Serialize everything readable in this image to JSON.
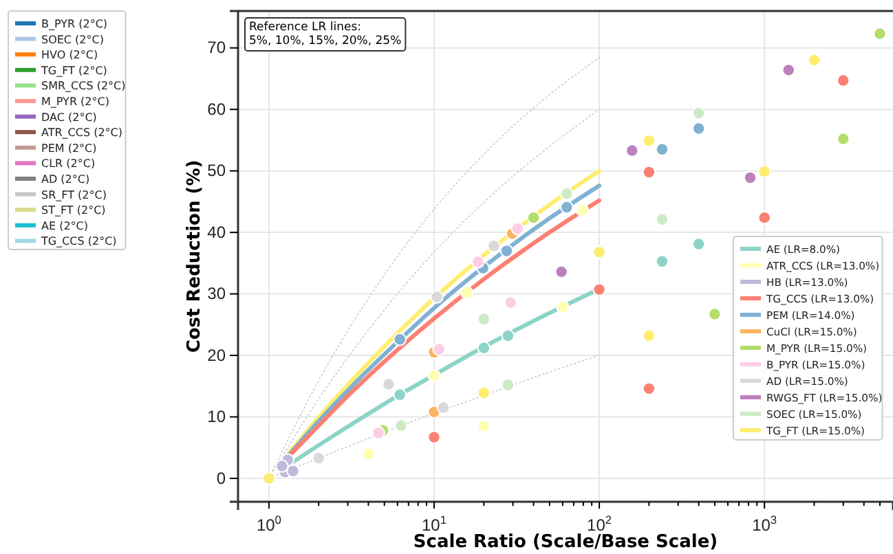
{
  "chart_data": {
    "type": "scatter",
    "xlabel": "Scale Ratio (Scale/Base Scale)",
    "ylabel": "Cost Reduction (%)",
    "annotations": [
      "Reference LR lines:\n5%, 10%, 15%, 20%, 25%"
    ],
    "log": "x",
    "grid": true,
    "legend": "top left",
    "marker": "circle",
    "xlim": [
      0.65,
      6000
    ],
    "ylim": [
      -3.8,
      76
    ],
    "xticks": [
      {
        "value": 1,
        "label": "10$^{0}$"
      },
      {
        "value": 2,
        "label": null
      },
      {
        "value": 3,
        "label": null
      },
      {
        "value": 4,
        "label": null
      },
      {
        "value": 5,
        "label": null
      },
      {
        "value": 6,
        "label": null
      },
      {
        "value": 7,
        "label": null
      },
      {
        "value": 8,
        "label": null
      },
      {
        "value": 9,
        "label": null
      },
      {
        "value": 10,
        "label": "10$^{1}$"
      },
      {
        "value": 20,
        "label": null
      },
      {
        "value": 30,
        "label": null
      },
      {
        "value": 40,
        "label": null
      },
      {
        "value": 50,
        "label": null
      },
      {
        "value": 60,
        "label": null
      },
      {
        "value": 70,
        "label": null
      },
      {
        "value": 80,
        "label": null
      },
      {
        "value": 90,
        "label": null
      },
      {
        "value": 100,
        "label": "10$^{2}$"
      },
      {
        "value": 200,
        "label": null
      },
      {
        "value": 300,
        "label": null
      },
      {
        "value": 400,
        "label": null
      },
      {
        "value": 500,
        "label": null
      },
      {
        "value": 600,
        "label": null
      },
      {
        "value": 700,
        "label": null
      },
      {
        "value": 800,
        "label": null
      },
      {
        "value": 900,
        "label": null
      },
      {
        "value": 1000,
        "label": "10$^{3}$"
      },
      {
        "value": 2000,
        "label": null
      },
      {
        "value": 3000,
        "label": null
      },
      {
        "value": 4000,
        "label": null
      },
      {
        "value": 5000,
        "label": null
      }
    ],
    "yticks": [
      0,
      10,
      20,
      30,
      40,
      50,
      60,
      70
    ],
    "series": [
      {
        "type": "line",
        "marker": "none",
        "line_style": "dotted",
        "color": "#cccccc",
        "x": [
          1,
          2,
          5,
          10,
          20,
          50,
          100
        ],
        "values": [
          0,
          3.3,
          7.5,
          10.6,
          13.5,
          17.3,
          20.0
        ]
      },
      {
        "type": "line",
        "marker": "none",
        "line_style": "dotted",
        "color": "#cccccc",
        "x": [
          1,
          2,
          5,
          10,
          20,
          50,
          100
        ],
        "values": [
          0,
          12.9,
          27.4,
          36.8,
          44.9,
          54.0,
          60.0
        ]
      },
      {
        "type": "line",
        "marker": "none",
        "line_style": "dotted",
        "color": "#cccccc",
        "x": [
          1,
          2,
          5,
          10,
          20,
          50,
          100
        ],
        "values": [
          0,
          15.9,
          33.1,
          43.8,
          52.7,
          62.4,
          68.4
        ]
      },
      {
        "type": "line",
        "marker": "none",
        "color": "#ffed6f",
        "x": [
          1.3,
          2,
          3,
          6,
          10,
          20,
          50,
          100
        ],
        "values": [
          3.9,
          9.9,
          15.2,
          23.6,
          29.3,
          36.3,
          44.5,
          50.0
        ]
      },
      {
        "type": "line",
        "marker": "none",
        "color": "#80b1d3",
        "x": [
          1.3,
          2,
          3,
          6,
          10,
          20,
          50,
          100
        ],
        "values": [
          3.6,
          9.3,
          14.3,
          22.2,
          27.7,
          34.4,
          42.3,
          47.6
        ]
      },
      {
        "type": "line",
        "marker": "none",
        "color": "#fb8072",
        "x": [
          1.3,
          2,
          3,
          6,
          10,
          20,
          50,
          100
        ],
        "values": [
          3.4,
          8.6,
          13.4,
          20.9,
          26.0,
          32.4,
          40.0,
          45.2
        ]
      },
      {
        "type": "line",
        "marker": "none",
        "color": "#8dd3c7",
        "x": [
          1.3,
          2,
          3,
          6,
          10,
          20,
          50,
          100
        ],
        "values": [
          2.1,
          5.4,
          8.4,
          13.4,
          16.8,
          21.4,
          26.9,
          30.8
        ]
      },
      {
        "name": "AE (LR=8.0%)",
        "color": "#8dd3c7",
        "x": [
          6.2,
          20,
          28,
          400,
          240
        ],
        "values": [
          13.6,
          21.2,
          23.2,
          38.1,
          35.3
        ]
      },
      {
        "name": "ATR_CCS (LR=13.0%)",
        "color": "#ffffb3",
        "x": [
          4,
          10,
          15.8,
          60,
          79,
          20
        ],
        "values": [
          4.0,
          16.7,
          30.2,
          27.9,
          43.6,
          8.5
        ]
      },
      {
        "name": "HB (LR=13.0%)",
        "color": "#bebada",
        "x": [
          1.25,
          1.4,
          1.3,
          1.2
        ],
        "values": [
          1.0,
          1.2,
          3.0,
          2.0
        ]
      },
      {
        "name": "TG_CCS (LR=13.0%)",
        "color": "#fb8072",
        "x": [
          10,
          100,
          200,
          1000,
          3000,
          200
        ],
        "values": [
          6.7,
          30.7,
          49.8,
          42.4,
          64.7,
          14.6
        ]
      },
      {
        "name": "PEM (LR=14.0%)",
        "color": "#80b1d3",
        "x": [
          6.2,
          19.8,
          27.5,
          63.5,
          400,
          240
        ],
        "values": [
          22.6,
          34.2,
          37.0,
          44.1,
          56.9,
          53.5
        ]
      },
      {
        "name": "CuCl (LR=15.0%)",
        "color": "#fdb462",
        "x": [
          10,
          10,
          29.7
        ],
        "values": [
          10.8,
          20.5,
          39.8
        ]
      },
      {
        "name": "M_PYR (LR=15.0%)",
        "color": "#b3de69",
        "x": [
          4.9,
          40,
          500,
          3000,
          5000
        ],
        "values": [
          7.8,
          42.4,
          26.7,
          55.2,
          72.3
        ]
      },
      {
        "name": "B_PYR (LR=15.0%)",
        "color": "#fccde5",
        "x": [
          4.6,
          10.7,
          18.4,
          32,
          29
        ],
        "values": [
          7.4,
          21.0,
          35.2,
          40.6,
          28.6
        ]
      },
      {
        "name": "AD (LR=15.0%)",
        "color": "#d9d9d9",
        "x": [
          2,
          5.3,
          11.4,
          10.4,
          23
        ],
        "values": [
          3.3,
          15.3,
          11.5,
          29.5,
          37.8
        ]
      },
      {
        "name": "RWGS_FT (LR=15.0%)",
        "color": "#bc80bd",
        "x": [
          59,
          158,
          1400,
          820
        ],
        "values": [
          33.6,
          53.3,
          66.4,
          48.9
        ]
      },
      {
        "name": "SOEC (LR=15.0%)",
        "color": "#ccebc5",
        "x": [
          6.3,
          63.5,
          20,
          28,
          400,
          240
        ],
        "values": [
          8.6,
          46.3,
          25.9,
          15.2,
          59.4,
          42.1
        ]
      },
      {
        "name": "TG_FT (LR=15.0%)",
        "color": "#ffed6f",
        "x": [
          1,
          100,
          200,
          200,
          20,
          1000,
          2000
        ],
        "values": [
          0,
          36.8,
          54.9,
          23.2,
          13.9,
          49.9,
          68.0
        ]
      },
      {
        "type": "line",
        "name": "B_PYR (2°C)",
        "color": "#1f77b4"
      },
      {
        "type": "line",
        "name": "SOEC (2°C)",
        "color": "#aec7e8"
      },
      {
        "type": "line",
        "name": "HVO (2°C)",
        "color": "#ff7f0e"
      },
      {
        "type": "line",
        "name": "TG_FT (2°C)",
        "color": "#2ca02c"
      },
      {
        "type": "line",
        "name": "SMR_CCS (2°C)",
        "color": "#98df8a"
      },
      {
        "type": "line",
        "name": "M_PYR (2°C)",
        "color": "#ff9896"
      },
      {
        "type": "line",
        "name": "DAC (2°C)",
        "color": "#9467bd"
      },
      {
        "type": "line",
        "name": "ATR_CCS (2°C)",
        "color": "#8c564b"
      },
      {
        "type": "line",
        "name": "PEM (2°C)",
        "color": "#c49c94"
      },
      {
        "type": "line",
        "name": "CLR (2°C)",
        "color": "#e377c2"
      },
      {
        "type": "line",
        "name": "AD (2°C)",
        "color": "#7f7f7f"
      },
      {
        "type": "line",
        "name": "SR_FT (2°C)",
        "color": "#c7c7c7"
      },
      {
        "type": "line",
        "name": "ST_FT (2°C)",
        "color": "#dbdb8d"
      },
      {
        "type": "line",
        "name": "AE (2°C)",
        "color": "#17becf"
      },
      {
        "type": "line",
        "name": "TG_CCS (2°C)",
        "color": "#9edae5"
      }
    ]
  }
}
